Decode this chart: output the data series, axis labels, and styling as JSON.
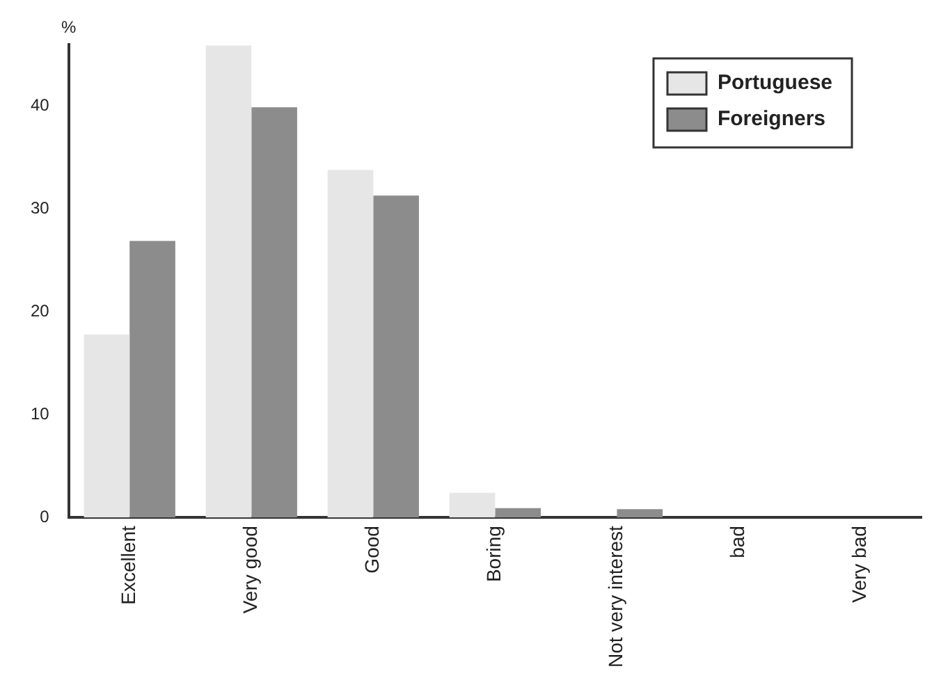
{
  "chart_data": {
    "type": "bar",
    "ylabel": "%",
    "categories": [
      "Excellent",
      "Very good",
      "Good",
      "Boring",
      "Not very interest",
      "bad",
      "Very bad"
    ],
    "series": [
      {
        "name": "Portuguese",
        "color": "#e6e6e6",
        "values": [
          17.8,
          45.9,
          33.8,
          2.4,
          0,
          0,
          0
        ]
      },
      {
        "name": "Foreigners",
        "color": "#8c8c8c",
        "values": [
          26.9,
          39.9,
          31.3,
          0.9,
          0.8,
          0,
          0
        ]
      }
    ],
    "ylim": [
      0,
      46
    ],
    "yticks": [
      0,
      10,
      20,
      30,
      40
    ],
    "grid": false,
    "legend": "top right"
  }
}
